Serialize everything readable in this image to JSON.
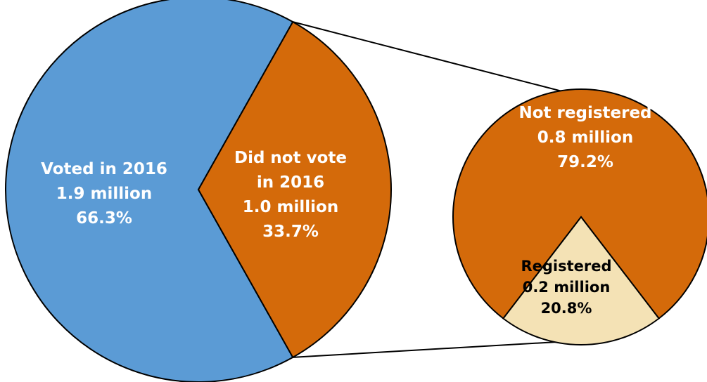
{
  "chart_data": {
    "type": "pie",
    "variant": "pie-of-pie",
    "main_pie": {
      "slices": [
        {
          "label_lines": [
            "Voted in 2016",
            "1.9 million",
            "66.3%"
          ],
          "value_millions": 1.9,
          "percent": 66.3,
          "color": "#5b9bd5"
        },
        {
          "label_lines": [
            "Did not vote",
            "in 2016",
            "1.0 million",
            "33.7%"
          ],
          "value_millions": 1.0,
          "percent": 33.7,
          "color": "#d46a0a"
        }
      ]
    },
    "detail_pie": {
      "expands_slice": 1,
      "slices": [
        {
          "label_lines": [
            "Not registered",
            "0.8 million",
            "79.2%"
          ],
          "value_millions": 0.8,
          "percent": 79.2,
          "color": "#d46a0a"
        },
        {
          "label_lines": [
            "Registered",
            "0.2 million",
            "20.8%"
          ],
          "value_millions": 0.2,
          "percent": 20.8,
          "color": "#f4e2b5"
        }
      ]
    },
    "text_color": "#ffffff",
    "registered_text_color": "#000000",
    "outline_color": "#000000"
  }
}
